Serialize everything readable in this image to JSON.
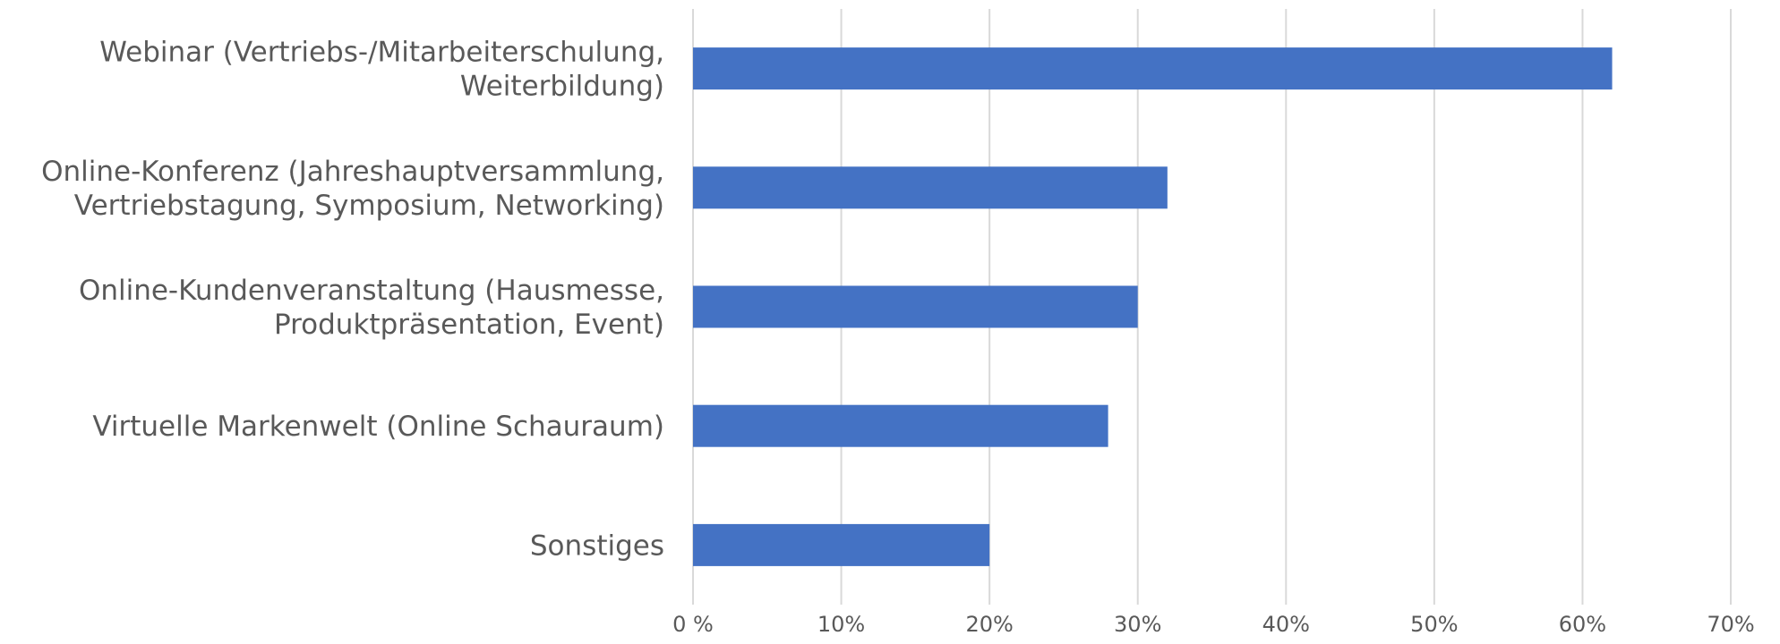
{
  "chart_data": {
    "type": "bar",
    "orientation": "horizontal",
    "categories": [
      [
        "Webinar (Vertriebs-/Mitarbeiterschulung,",
        "Weiterbildung)"
      ],
      [
        "Online-Konferenz (Jahreshauptversammlung,",
        "Vertriebstagung, Symposium, Networking)"
      ],
      [
        "Online-Kundenveranstaltung (Hausmesse,",
        "Produktpräsentation, Event)"
      ],
      [
        "Virtuelle Markenwelt (Online Schauraum)"
      ],
      [
        "Sonstiges"
      ]
    ],
    "values": [
      62,
      32,
      30,
      28,
      20
    ],
    "xlim": [
      0,
      70
    ],
    "ticks": [
      0,
      10,
      20,
      30,
      40,
      50,
      60,
      70
    ],
    "tick_labels": [
      "0 %",
      "10%",
      "20%",
      "30%",
      "40%",
      "50%",
      "60%",
      "70%"
    ],
    "grid": true,
    "bar_color": "#4472C4",
    "title": "",
    "xlabel": "",
    "ylabel": ""
  }
}
